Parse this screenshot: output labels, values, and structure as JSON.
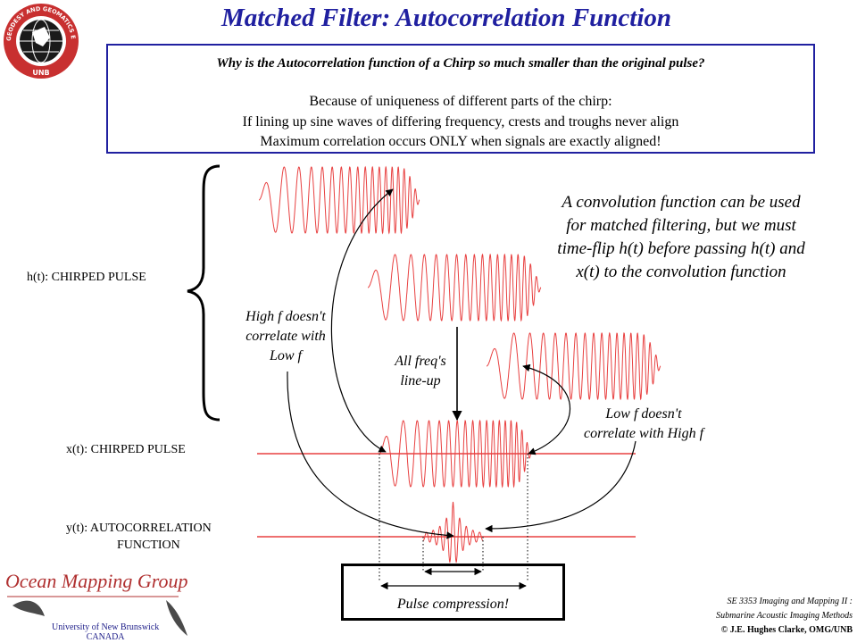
{
  "title": "Matched Filter:  Autocorrelation Function",
  "logo": {
    "ring_text": "GEODESY AND GEOMATICS ENGINEERING",
    "bottom_text": "UNB"
  },
  "question_box": {
    "question": "Why is the Autocorrelation function of a Chirp so much smaller than the original pulse?",
    "answer_lines": [
      "Because of uniqueness of different parts of the chirp:",
      "If lining up sine waves of differing frequency, crests and troughs never align",
      "Maximum correlation occurs ONLY when signals are exactly aligned!"
    ]
  },
  "labels": {
    "h_t": "h(t):  CHIRPED PULSE",
    "x_t": "x(t):  CHIRPED PULSE",
    "y_t_line1": "y(t):  AUTOCORRELATION",
    "y_t_line2": "FUNCTION"
  },
  "annotations": {
    "high_f": [
      "High f doesn't",
      "correlate with",
      "Low f"
    ],
    "all_freq": [
      "All freq's",
      "line-up"
    ],
    "low_f": [
      "Low f doesn't",
      "correlate with High f"
    ],
    "convolution_note": [
      "A convolution function can be used",
      "for matched filtering, but we must",
      "time-flip h(t) before passing h(t) and",
      "x(t) to the convolution function"
    ],
    "pulse_compression": "Pulse compression!"
  },
  "footer": {
    "group_name": "Ocean Mapping Group",
    "university": "University of New Brunswick",
    "country": "CANADA",
    "course_line1": "SE 3353 Imaging and Mapping II :",
    "course_line2": "Submarine Acoustic Imaging Methods",
    "author": "© J.E. Hughes Clarke, OMG/UNB"
  },
  "colors": {
    "title": "#2020a0",
    "wave": "#e84040",
    "brand": "#b03030"
  }
}
